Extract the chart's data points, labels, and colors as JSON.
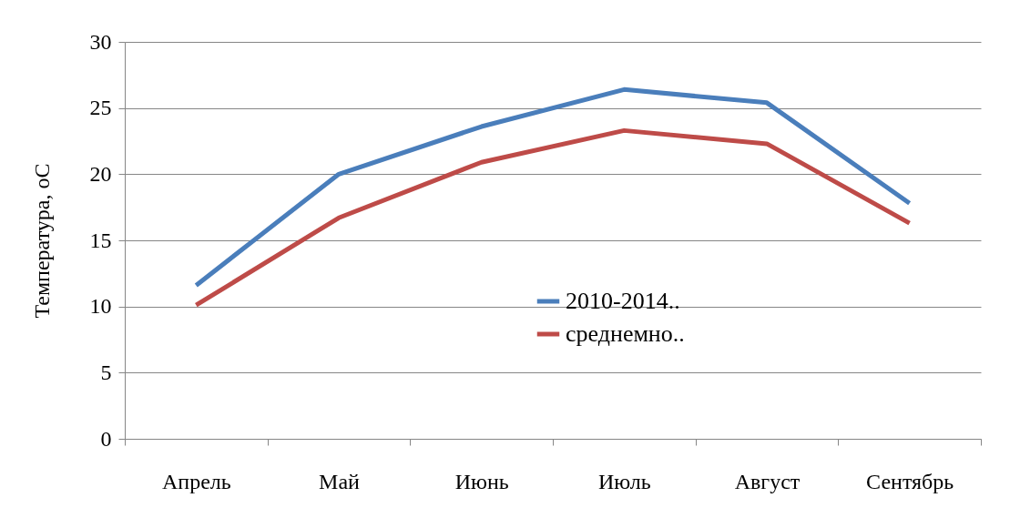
{
  "chart_data": {
    "type": "line",
    "ylabel": "Температура, оС",
    "categories": [
      "Апрель",
      "Май",
      "Июнь",
      "Июль",
      "Август",
      "Сентябрь"
    ],
    "series": [
      {
        "name": "2010-2014..",
        "color": "#4a7ebb",
        "values": [
          11.6,
          20.0,
          23.6,
          26.4,
          25.4,
          17.8
        ]
      },
      {
        "name": "среднемно..",
        "color": "#be4b48",
        "values": [
          10.1,
          16.7,
          20.9,
          23.3,
          22.3,
          16.3
        ]
      }
    ],
    "ylim": [
      0,
      30
    ],
    "yticks": [
      0,
      5,
      10,
      15,
      20,
      25,
      30
    ],
    "grid": "y",
    "legend": "bottom",
    "marker": "none",
    "line_style": "solid"
  }
}
